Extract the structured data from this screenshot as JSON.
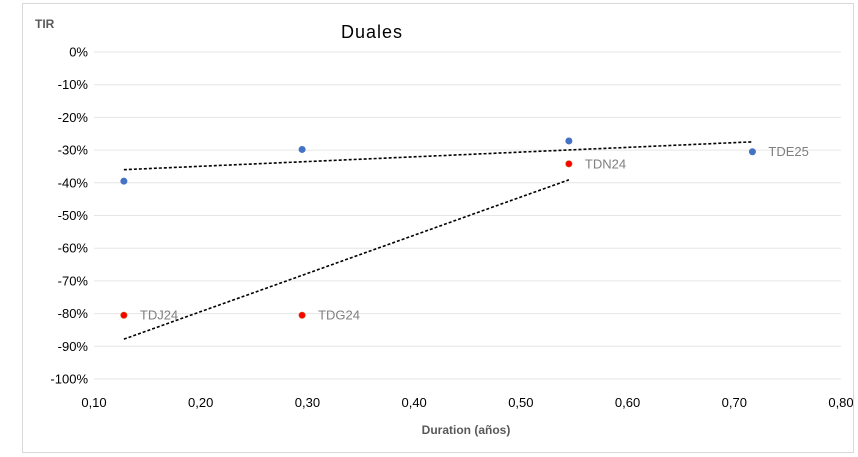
{
  "chart_data": {
    "type": "scatter",
    "title": "Duales",
    "xlabel": "Duration (años)",
    "ylabel": "TIR",
    "xlim": [
      0.1,
      0.8
    ],
    "ylim": [
      -100,
      0
    ],
    "x_ticks": [
      "0,10",
      "0,20",
      "0,30",
      "0,40",
      "0,50",
      "0,60",
      "0,70",
      "0,80"
    ],
    "x_tick_values": [
      0.1,
      0.2,
      0.3,
      0.4,
      0.5,
      0.6,
      0.7,
      0.8
    ],
    "y_ticks": [
      "0%",
      "-10%",
      "-20%",
      "-30%",
      "-40%",
      "-50%",
      "-60%",
      "-70%",
      "-80%",
      "-90%",
      "-100%"
    ],
    "y_tick_values": [
      0,
      -10,
      -20,
      -30,
      -40,
      -50,
      -60,
      -70,
      -80,
      -90,
      -100
    ],
    "grid": true,
    "legend": "none",
    "series": [
      {
        "color": "#4472c4",
        "points": [
          {
            "x": 0.128,
            "y": -39.5,
            "label": ""
          },
          {
            "x": 0.295,
            "y": -29.8,
            "label": ""
          },
          {
            "x": 0.545,
            "y": -27.2,
            "label": ""
          },
          {
            "x": 0.717,
            "y": -30.5,
            "label": "TDE25"
          }
        ],
        "trendline": {
          "style": "dashed",
          "color": "#000000"
        }
      },
      {
        "color": "#ff0000",
        "points": [
          {
            "x": 0.128,
            "y": -80.5,
            "label": "TDJ24"
          },
          {
            "x": 0.295,
            "y": -80.5,
            "label": "TDG24"
          },
          {
            "x": 0.545,
            "y": -34.2,
            "label": "TDN24"
          }
        ],
        "trendline": {
          "style": "dashed",
          "color": "#000000"
        }
      }
    ]
  }
}
